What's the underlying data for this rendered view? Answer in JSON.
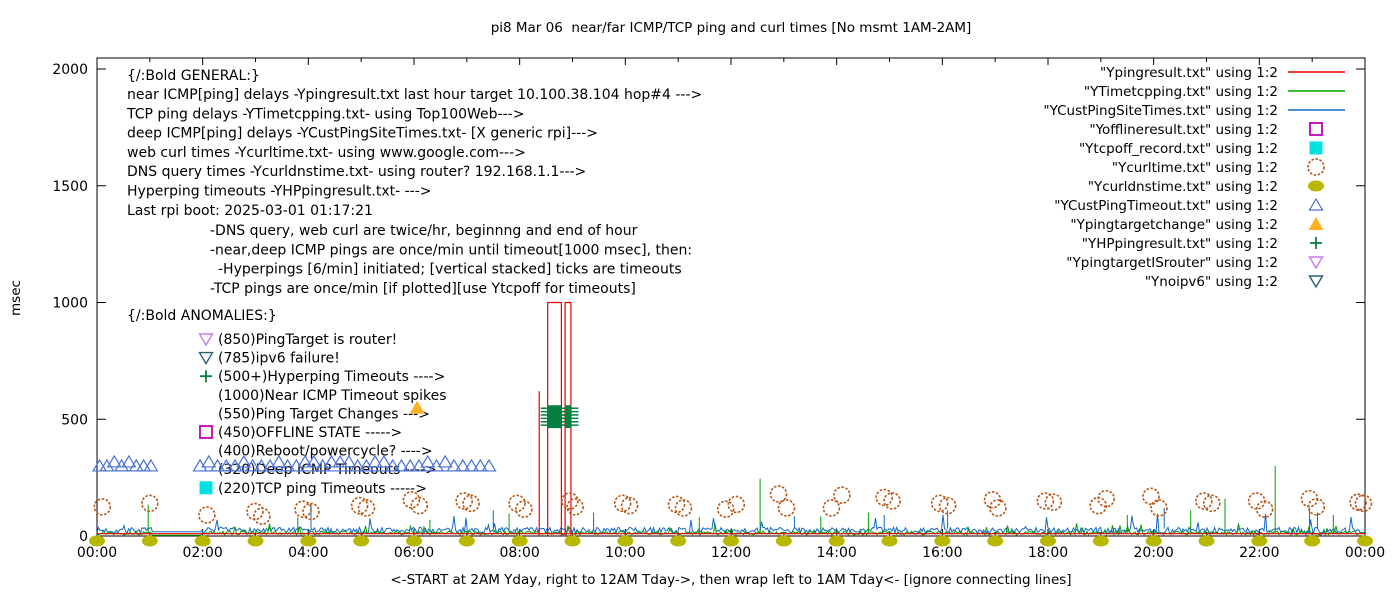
{
  "title": "pi8 Mar 06  near/far ICMP/TCP ping and curl times [No msmt 1AM-2AM]",
  "ylabel": "msec",
  "xlabel_note": "<-START at 2AM Yday, right to 12AM Tday->, then wrap left to 1AM Tday<- [ignore connecting lines]",
  "legend": {
    "items": [
      {
        "label": "\"Ypingresult.txt\" using 1:2",
        "series": "Ypingresult.txt"
      },
      {
        "label": "\"YTimetcpping.txt\" using 1:2",
        "series": "YTimetcpping.txt"
      },
      {
        "label": "\"YCustPingSiteTimes.txt\" using 1:2",
        "series": "YCustPingSiteTimes.txt"
      },
      {
        "label": "\"Yofflineresult.txt\" using 1:2",
        "series": "Yofflineresult.txt"
      },
      {
        "label": "\"Ytcpoff_record.txt\" using 1:2",
        "series": "Ytcpoff_record.txt"
      },
      {
        "label": "\"Ycurltime.txt\" using 1:2",
        "series": "Ycurltime.txt"
      },
      {
        "label": "\"Ycurldnstime.txt\" using 1:2",
        "series": "Ycurldnstime.txt"
      },
      {
        "label": "\"YCustPingTimeout.txt\" using 1:2",
        "series": "YCustPingTimeout.txt"
      },
      {
        "label": "\"Ypingtargetchange\" using 1:2",
        "series": "Ypingtargetchange"
      },
      {
        "label": "\"YHPpingresult.txt\" using 1:2",
        "series": "YHPpingresult.txt"
      },
      {
        "label": "\"YpingtargetISrouter\" using 1:2",
        "series": "YpingtargetISrouter"
      },
      {
        "label": "\"Ynoipv6\" using 1:2",
        "series": "Ynoipv6"
      }
    ]
  },
  "annotations": {
    "general": {
      "heading": "{/:Bold GENERAL:}",
      "lines": [
        "near ICMP[ping] delays -Ypingresult.txt last hour target 10.100.38.104 hop#4 --->",
        "TCP ping delays -YTimetcpping.txt- using Top100Web--->",
        "deep ICMP[ping] delays -YCustPingSiteTimes.txt- [X generic rpi]--->",
        "web curl times -Ycurltime.txt- using www.google.com--->",
        "DNS query times -Ycurldnstime.txt- using router? 192.168.1.1--->",
        "Hyperping timeouts -YHPpingresult.txt- --->",
        "Last rpi boot: 2025-03-01 01:17:21"
      ],
      "notes": [
        "-DNS query, web curl are twice/hr, beginnng and end of hour",
        "-near,deep ICMP pings are once/min until timeout[1000 msec], then:",
        "-Hyperpings [6/min] initiated; [vertical stacked] ticks are timeouts",
        "-TCP pings are once/min [if plotted][use Ytcpoff for timeouts]"
      ]
    },
    "anomalies": {
      "heading": "{/:Bold ANOMALIES:}",
      "items": [
        {
          "icon": "triangle-down-open-violet",
          "text": "(850)PingTarget is router!"
        },
        {
          "icon": "triangle-down-open-teal",
          "text": "(785)ipv6 failure!"
        },
        {
          "icon": "plus-green",
          "text": "(500+)Hyperping Timeouts ---->"
        },
        {
          "icon": "none",
          "text": "(1000)Near ICMP Timeout spikes"
        },
        {
          "icon": "triangle-up-orange",
          "text": "(550)Ping Target Changes --->"
        },
        {
          "icon": "square-open-magenta",
          "text": "(450)OFFLINE STATE ----->"
        },
        {
          "icon": "none",
          "text": "(400)Reboot/powercycle? ---->"
        },
        {
          "icon": "none",
          "text": "(320)Deep ICMP Timeouts ---->"
        },
        {
          "icon": "square-cyan",
          "text": "(220)TCP ping Timeouts ----->"
        }
      ]
    }
  },
  "chart_data": {
    "type": "line",
    "title": "pi8 Mar 06  near/far ICMP/TCP ping and curl times [No msmt 1AM-2AM]",
    "xlabel": "<-START at 2AM Yday, right to 12AM Tday->, then wrap left to 1AM Tday<- [ignore connecting lines]",
    "ylabel": "msec",
    "ylim": [
      0,
      2000
    ],
    "yticks": [
      0,
      500,
      1000,
      1500,
      2000
    ],
    "x_hours_total": 24,
    "x_tick_every_hours": 2,
    "x_tick_labels": [
      "00:00",
      "02:00",
      "04:00",
      "06:00",
      "08:00",
      "10:00",
      "12:00",
      "14:00",
      "16:00",
      "18:00",
      "20:00",
      "22:00",
      "00:00"
    ],
    "measurement_gap_hours": [
      1.03,
      1.97
    ],
    "legend_position": "top-right-inside",
    "grid": false,
    "series": [
      {
        "name": "Ypingresult.txt",
        "color": "#ee0000",
        "type": "line",
        "baseline_msec": 10,
        "timeout_boxes": [
          {
            "h_start": 8.53,
            "h_end": 8.79,
            "peak_msec": 1000
          },
          {
            "h_start": 8.86,
            "h_end": 8.97,
            "peak_msec": 1000
          }
        ],
        "spikes": [
          [
            8.37,
            620
          ]
        ]
      },
      {
        "name": "YTimetcpping.txt",
        "color": "#00a000",
        "type": "line",
        "baseline_msec": 14,
        "noise_msec": 16,
        "gap_value_msec": 3,
        "spikes": [
          [
            0.97,
            135
          ],
          [
            3.8,
            80
          ],
          [
            6.3,
            70
          ],
          [
            7.8,
            95
          ],
          [
            11.4,
            80
          ],
          [
            12.55,
            245
          ],
          [
            13.7,
            85
          ],
          [
            14.6,
            100
          ],
          [
            19.5,
            90
          ],
          [
            20.7,
            110
          ],
          [
            21.35,
            160
          ],
          [
            22.3,
            300
          ],
          [
            22.95,
            120
          ],
          [
            23.4,
            90
          ]
        ]
      },
      {
        "name": "YCustPingSiteTimes.txt",
        "color": "#1368ce",
        "type": "line",
        "baseline_msec": 32,
        "noise_msec": 26,
        "gap_value_msec": 18,
        "spikes": [
          [
            4.05,
            140
          ],
          [
            7.5,
            110
          ],
          [
            9.4,
            100
          ],
          [
            13.2,
            85
          ],
          [
            14.9,
            90
          ],
          [
            16.1,
            110
          ],
          [
            20.2,
            120
          ],
          [
            23.1,
            100
          ]
        ]
      },
      {
        "name": "Yofflineresult.txt",
        "color": "#c000c0",
        "type": "points",
        "marker": "square-open",
        "points": []
      },
      {
        "name": "Ytcpoff_record.txt",
        "color": "#00e0e0",
        "type": "points",
        "marker": "square-filled",
        "points": []
      },
      {
        "name": "Ycurltime.txt",
        "color": "#b85615",
        "type": "points",
        "marker": "circle-open",
        "points": [
          [
            0.1,
            125
          ],
          [
            1.0,
            140
          ],
          [
            2.08,
            90
          ],
          [
            2.99,
            105
          ],
          [
            3.12,
            85
          ],
          [
            3.9,
            115
          ],
          [
            4.05,
            105
          ],
          [
            4.97,
            130
          ],
          [
            5.1,
            120
          ],
          [
            5.95,
            155
          ],
          [
            6.1,
            130
          ],
          [
            6.95,
            150
          ],
          [
            7.08,
            140
          ],
          [
            7.95,
            140
          ],
          [
            8.08,
            115
          ],
          [
            8.95,
            150
          ],
          [
            9.05,
            125
          ],
          [
            9.95,
            140
          ],
          [
            10.08,
            130
          ],
          [
            10.97,
            135
          ],
          [
            11.1,
            120
          ],
          [
            11.9,
            115
          ],
          [
            12.1,
            135
          ],
          [
            12.9,
            180
          ],
          [
            13.05,
            120
          ],
          [
            13.9,
            120
          ],
          [
            14.1,
            175
          ],
          [
            14.9,
            165
          ],
          [
            15.05,
            150
          ],
          [
            15.95,
            140
          ],
          [
            16.1,
            130
          ],
          [
            16.95,
            155
          ],
          [
            17.05,
            120
          ],
          [
            17.95,
            150
          ],
          [
            18.1,
            145
          ],
          [
            18.95,
            130
          ],
          [
            19.1,
            160
          ],
          [
            19.95,
            170
          ],
          [
            20.1,
            120
          ],
          [
            20.95,
            150
          ],
          [
            21.1,
            140
          ],
          [
            21.95,
            150
          ],
          [
            22.1,
            115
          ],
          [
            22.95,
            160
          ],
          [
            23.08,
            125
          ],
          [
            23.87,
            145
          ],
          [
            23.97,
            140
          ]
        ]
      },
      {
        "name": "Ycurldnstime.txt",
        "color": "#b8b800",
        "type": "points",
        "marker": "circle-filled",
        "points": [
          [
            0,
            0
          ],
          [
            1,
            0
          ],
          [
            2,
            0
          ],
          [
            3,
            0
          ],
          [
            4,
            0
          ],
          [
            5,
            0
          ],
          [
            6,
            0
          ],
          [
            7,
            0
          ],
          [
            8,
            0
          ],
          [
            9,
            0
          ],
          [
            10,
            0
          ],
          [
            11,
            0
          ],
          [
            12,
            0
          ],
          [
            13,
            0
          ],
          [
            14,
            0
          ],
          [
            15,
            0
          ],
          [
            16,
            0
          ],
          [
            17,
            0
          ],
          [
            18,
            0
          ],
          [
            19,
            0
          ],
          [
            20,
            0
          ],
          [
            21,
            0
          ],
          [
            22,
            0
          ],
          [
            23,
            0
          ],
          [
            24,
            0
          ]
        ]
      },
      {
        "name": "YCustPingTimeout.txt",
        "color": "#4a70d8",
        "type": "linespoints",
        "marker": "triangle-up-open",
        "value_msec": 300,
        "rows": [
          {
            "h_start": 0.05,
            "h_end": 1.02,
            "count": 8
          },
          {
            "h_start": 1.95,
            "h_end": 7.42,
            "count": 34
          }
        ]
      },
      {
        "name": "Ypingtargetchange",
        "color": "#ffb021",
        "type": "points",
        "marker": "triangle-up-filled",
        "points": [
          [
            6.06,
            550
          ]
        ]
      },
      {
        "name": "YHPpingresult.txt",
        "color": "#067f41",
        "type": "points",
        "marker": "plus",
        "timeout_clusters": [
          {
            "h_start": 8.53,
            "h_end": 8.79,
            "v_min": 462,
            "v_max": 560
          },
          {
            "h_start": 8.86,
            "h_end": 8.98,
            "v_min": 462,
            "v_max": 560
          }
        ]
      },
      {
        "name": "YpingtargetISrouter",
        "color": "#c07ef2",
        "type": "points",
        "marker": "triangle-down-open",
        "points": []
      },
      {
        "name": "Ynoipv6",
        "color": "#2b5e78",
        "type": "points",
        "marker": "triangle-down-open",
        "points": []
      }
    ]
  }
}
